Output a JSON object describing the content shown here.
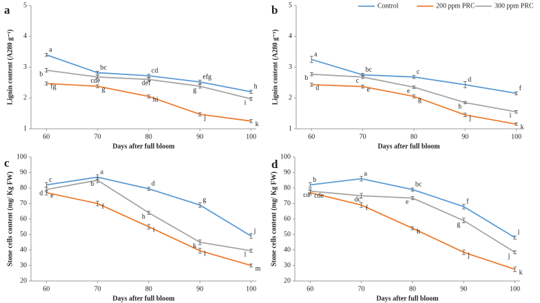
{
  "chart_data": [
    {
      "type": "line",
      "panel": "a",
      "x_label": "Days after full bloom",
      "y_label": "Lignin content (A280 g⁻¹)",
      "x": [
        60,
        70,
        80,
        90,
        100
      ],
      "xlim": [
        57,
        101
      ],
      "xticks": [
        60,
        70,
        80,
        90,
        100
      ],
      "ylim": [
        1,
        5
      ],
      "yticks": [
        1,
        2,
        3,
        4,
        5
      ],
      "legend": false,
      "series": [
        {
          "color": "#5b9bd5",
          "values": [
            3.4,
            2.82,
            2.72,
            2.52,
            2.2
          ],
          "errors": [
            0.05,
            0.05,
            0.05,
            0.06,
            0.05
          ],
          "annotations": [
            "a",
            "bc",
            "cd",
            "efg",
            "h"
          ]
        },
        {
          "color": "#ed7d31",
          "values": [
            2.47,
            2.38,
            2.05,
            1.47,
            1.25
          ],
          "errors": [
            0.05,
            0.05,
            0.05,
            0.05,
            0.05
          ],
          "annotations": [
            "fg",
            "g",
            "hi",
            "j",
            "k"
          ]
        },
        {
          "color": "#a5a5a5",
          "values": [
            2.9,
            2.68,
            2.6,
            2.38,
            1.97
          ],
          "errors": [
            0.06,
            0.05,
            0.05,
            0.06,
            0.05
          ],
          "annotations": [
            "b",
            "cde",
            "def",
            "g",
            "i"
          ]
        }
      ]
    },
    {
      "type": "line",
      "panel": "b",
      "x_label": "Days after full bloom",
      "y_label": "Lignin content (A280 g⁻¹)",
      "x": [
        60,
        70,
        80,
        90,
        100
      ],
      "xlim": [
        57,
        101
      ],
      "xticks": [
        60,
        70,
        80,
        90,
        100
      ],
      "ylim": [
        1,
        5
      ],
      "yticks": [
        1,
        2,
        3,
        4,
        5
      ],
      "legend": "top",
      "series": [
        {
          "name": "Control",
          "color": "#5b9bd5",
          "values": [
            3.25,
            2.75,
            2.68,
            2.43,
            2.15
          ],
          "errors": [
            0.1,
            0.05,
            0.05,
            0.1,
            0.05
          ],
          "annotations": [
            "a",
            "bc",
            "c",
            "d",
            "f"
          ]
        },
        {
          "name": "200 ppm PRC",
          "color": "#ed7d31",
          "values": [
            2.43,
            2.37,
            2.05,
            1.45,
            1.15
          ],
          "errors": [
            0.05,
            0.05,
            0.05,
            0.06,
            0.04
          ],
          "annotations": [
            "d",
            "e",
            "g",
            "j",
            "k"
          ]
        },
        {
          "name": "300 ppm PRC",
          "color": "#a5a5a5",
          "values": [
            2.77,
            2.68,
            2.35,
            1.85,
            1.55
          ],
          "errors": [
            0.05,
            0.05,
            0.04,
            0.04,
            0.04
          ],
          "annotations": [
            "b",
            "c",
            "e",
            "h",
            "i"
          ]
        }
      ]
    },
    {
      "type": "line",
      "panel": "c",
      "x_label": "Days after full bloom",
      "y_label": "Stone cells content (mg/ Kg FW)",
      "x": [
        60,
        70,
        80,
        90,
        100
      ],
      "xlim": [
        57,
        101
      ],
      "xticks": [
        60,
        70,
        80,
        90,
        100
      ],
      "ylim": [
        20,
        100
      ],
      "yticks": [
        20,
        30,
        40,
        50,
        60,
        70,
        80,
        90,
        100
      ],
      "legend": false,
      "series": [
        {
          "color": "#5b9bd5",
          "values": [
            82,
            87,
            79.5,
            69,
            49
          ],
          "errors": [
            1.5,
            1.5,
            1,
            1.5,
            1.5
          ],
          "annotations": [
            "c",
            "a",
            "d",
            "g",
            "j"
          ]
        },
        {
          "color": "#ed7d31",
          "values": [
            77,
            70,
            55,
            39.5,
            30
          ],
          "errors": [
            1.5,
            1.5,
            1.5,
            1.5,
            1
          ],
          "annotations": [
            "e",
            "f",
            "i",
            "l",
            "m"
          ]
        },
        {
          "color": "#a5a5a5",
          "values": [
            79,
            85,
            64,
            45,
            39.5
          ],
          "errors": [
            1.5,
            1.5,
            1,
            1.5,
            1
          ],
          "annotations": [
            "d",
            "b",
            "h",
            "k",
            "l"
          ]
        }
      ]
    },
    {
      "type": "line",
      "panel": "d",
      "x_label": "Days after full bloom",
      "y_label": "Stone cells content (mg/ Kg FW)",
      "x": [
        60,
        70,
        80,
        90,
        100
      ],
      "xlim": [
        57,
        101
      ],
      "xticks": [
        60,
        70,
        80,
        90,
        100
      ],
      "ylim": [
        20,
        100
      ],
      "yticks": [
        20,
        30,
        40,
        50,
        60,
        70,
        80,
        90,
        100
      ],
      "legend": false,
      "series": [
        {
          "color": "#5b9bd5",
          "values": [
            82,
            86,
            79,
            68,
            48
          ],
          "errors": [
            1.5,
            1.5,
            1,
            1.5,
            1
          ],
          "annotations": [
            "b",
            "a",
            "bc",
            "f",
            "l"
          ]
        },
        {
          "color": "#ed7d31",
          "values": [
            77,
            69,
            54,
            38.5,
            27.5
          ],
          "errors": [
            1.5,
            1.5,
            1,
            1.5,
            1.5
          ],
          "annotations": [
            "cde",
            "f",
            "h",
            "j",
            "k"
          ]
        },
        {
          "color": "#a5a5a5",
          "values": [
            78,
            75,
            73.5,
            59,
            38.5
          ],
          "errors": [
            1.5,
            1.5,
            1,
            1.5,
            1
          ],
          "annotations": [
            "cd",
            "dc",
            "e",
            "g",
            "j"
          ]
        }
      ]
    }
  ]
}
